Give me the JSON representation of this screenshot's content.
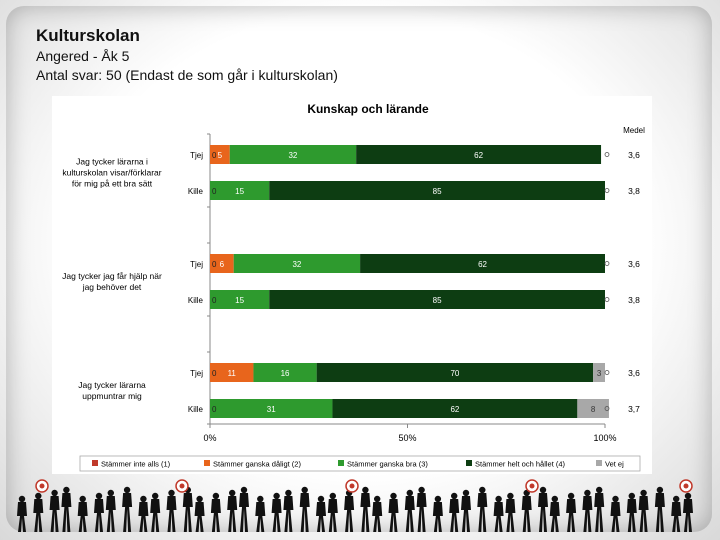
{
  "header": {
    "title": "Kulturskolan",
    "subtitle1": "Angered - Åk 5",
    "subtitle2": "Antal svar: 50 (Endast de som går i kulturskolan)"
  },
  "chart_data": {
    "type": "bar",
    "orientation": "horizontal-stacked-percent",
    "title": "Kunskap och lärande",
    "medel_label": "Medel",
    "xlim": [
      0,
      100
    ],
    "x_ticks": [
      "0%",
      "50%",
      "100%"
    ],
    "questions": [
      {
        "label_lines": [
          "Jag tycker lärarna i",
          "kulturskolan visar/förklarar",
          "för mig på ett bra sätt"
        ],
        "rows": [
          {
            "group": "Tjej",
            "values": [
              0,
              5,
              32,
              62,
              0
            ],
            "medel": "3,6"
          },
          {
            "group": "Kille",
            "values": [
              0,
              0,
              15,
              85,
              0
            ],
            "medel": "3,8"
          }
        ]
      },
      {
        "label_lines": [
          "Jag tycker jag får hjälp när",
          "jag behöver det"
        ],
        "rows": [
          {
            "group": "Tjej",
            "values": [
              0,
              6,
              32,
              62,
              0
            ],
            "medel": "3,6"
          },
          {
            "group": "Kille",
            "values": [
              0,
              0,
              15,
              85,
              0
            ],
            "medel": "3,8"
          }
        ]
      },
      {
        "label_lines": [
          "Jag tycker lärarna",
          "uppmuntrar mig"
        ],
        "rows": [
          {
            "group": "Tjej",
            "values": [
              0,
              11,
              16,
              70,
              3
            ],
            "medel": "3,6"
          },
          {
            "group": "Kille",
            "values": [
              0,
              0,
              31,
              62,
              8
            ],
            "medel": "3,7"
          }
        ]
      }
    ],
    "series": [
      {
        "name": "Stämmer inte alls (1)",
        "color": "#c0392b"
      },
      {
        "name": "Stämmer ganska dåligt (2)",
        "color": "#e8651c"
      },
      {
        "name": "Stämmer ganska bra (3)",
        "color": "#2e9a2e"
      },
      {
        "name": "Stämmer helt och hållet (4)",
        "color": "#0d3d12"
      },
      {
        "name": "Vet ej",
        "color": "#a8a8a8"
      }
    ]
  }
}
